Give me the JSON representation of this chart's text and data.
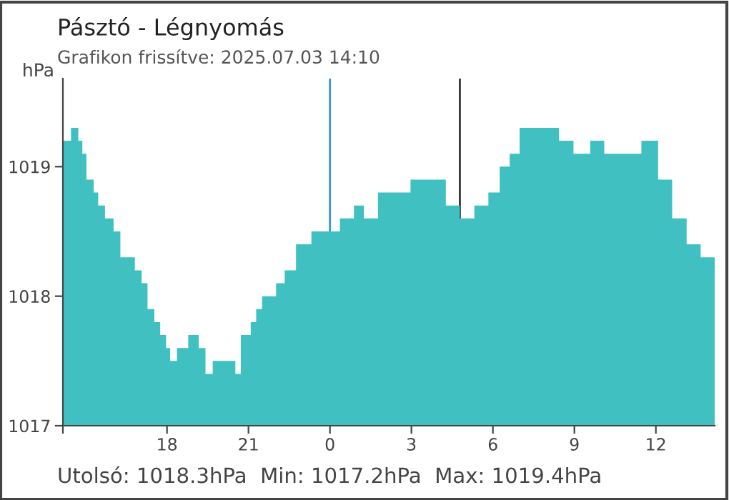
{
  "chart_data": {
    "type": "area",
    "title": "Pásztó - Légnyomás",
    "subtitle": "Grafikon frissítve: 2025.07.03 14:10",
    "ylabel": "hPa",
    "annotations": [
      "Utolsó: 1018.3hPa  Min: 1017.2hPa  Max: 1019.4hPa"
    ],
    "x": [
      "2025-07-02T14:10",
      "2025-07-02T14:28",
      "2025-07-02T14:44",
      "2025-07-02T14:53",
      "2025-07-02T15:02",
      "2025-07-02T15:18",
      "2025-07-02T15:28",
      "2025-07-02T15:43",
      "2025-07-02T16:02",
      "2025-07-02T16:17",
      "2025-07-02T16:36",
      "2025-07-02T16:49",
      "2025-07-02T17:04",
      "2025-07-02T17:17",
      "2025-07-02T17:32",
      "2025-07-02T17:45",
      "2025-07-02T17:58",
      "2025-07-02T18:07",
      "2025-07-02T18:22",
      "2025-07-02T18:47",
      "2025-07-02T19:10",
      "2025-07-02T19:25",
      "2025-07-02T19:41",
      "2025-07-02T20:12",
      "2025-07-02T20:31",
      "2025-07-02T20:43",
      "2025-07-02T21:05",
      "2025-07-02T21:17",
      "2025-07-02T21:30",
      "2025-07-02T22:01",
      "2025-07-02T22:20",
      "2025-07-02T22:45",
      "2025-07-02T23:19",
      "2025-07-03T00:00",
      "2025-07-03T00:22",
      "2025-07-03T00:53",
      "2025-07-03T01:15",
      "2025-07-03T01:46",
      "2025-07-03T02:27",
      "2025-07-03T02:58",
      "2025-07-03T03:45",
      "2025-07-03T04:16",
      "2025-07-03T04:47",
      "2025-07-03T05:19",
      "2025-07-03T05:50",
      "2025-07-03T06:15",
      "2025-07-03T06:37",
      "2025-07-03T06:59",
      "2025-07-03T07:40",
      "2025-07-03T08:26",
      "2025-07-03T08:58",
      "2025-07-03T09:35",
      "2025-07-03T10:06",
      "2025-07-03T10:38",
      "2025-07-03T11:28",
      "2025-07-03T12:05",
      "2025-07-03T12:36",
      "2025-07-03T13:08",
      "2025-07-03T13:39",
      "2025-07-03T14:10"
    ],
    "series": [
      {
        "color": "#41c0c1",
        "values": [
          1019.2,
          1019.3,
          1019.2,
          1019.1,
          1018.9,
          1018.8,
          1018.7,
          1018.6,
          1018.5,
          1018.3,
          1018.3,
          1018.2,
          1018.1,
          1017.9,
          1017.8,
          1017.7,
          1017.6,
          1017.5,
          1017.6,
          1017.7,
          1017.6,
          1017.4,
          1017.5,
          1017.5,
          1017.4,
          1017.7,
          1017.8,
          1017.9,
          1018.0,
          1018.1,
          1018.2,
          1018.4,
          1018.5,
          1018.5,
          1018.6,
          1018.7,
          1018.6,
          1018.8,
          1018.8,
          1018.9,
          1018.9,
          1018.7,
          1018.6,
          1018.7,
          1018.8,
          1019.0,
          1019.1,
          1019.3,
          1019.3,
          1019.2,
          1019.1,
          1019.2,
          1019.1,
          1019.1,
          1019.2,
          1018.9,
          1018.6,
          1018.4,
          1018.3,
          1018.3
        ]
      }
    ],
    "xlim": [
      "2025-07-02T14:10",
      "2025-07-03T14:10"
    ],
    "xticks": [
      {
        "value": "2025-07-02T14:10",
        "label": null
      },
      {
        "value": "2025-07-02T18:00",
        "label": "18"
      },
      {
        "value": "2025-07-02T21:00",
        "label": "21"
      },
      {
        "value": "2025-07-03T00:00",
        "label": "0"
      },
      {
        "value": "2025-07-03T03:00",
        "label": "3"
      },
      {
        "value": "2025-07-03T06:00",
        "label": "6"
      },
      {
        "value": "2025-07-03T09:00",
        "label": "9"
      },
      {
        "value": "2025-07-03T12:00",
        "label": "12"
      }
    ],
    "ylim": [
      1017,
      1019.68
    ],
    "yticks": [
      1017,
      1018,
      1019
    ],
    "ref_lines": [
      {
        "axis": "x",
        "value": "2025-07-03T00:00",
        "color": "#2e9be0"
      },
      {
        "axis": "x",
        "value": "2025-07-03T04:47",
        "color": "#333333"
      }
    ],
    "grid": false,
    "legend": false
  }
}
